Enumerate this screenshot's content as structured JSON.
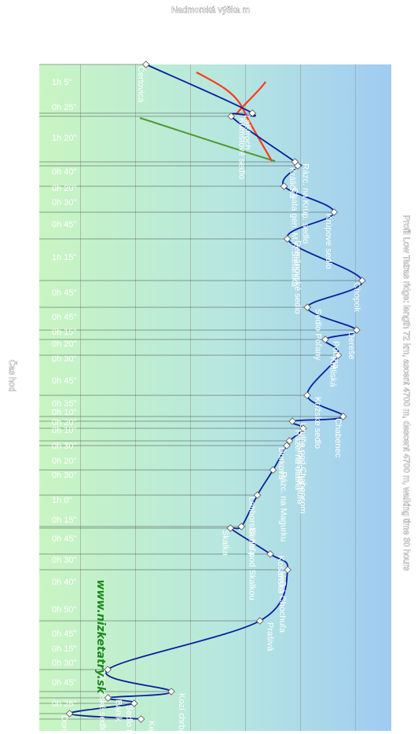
{
  "chart_data": {
    "type": "line",
    "title": "Profil Low Tatras ridge: length 72 km, ascent 4700 m, descent 4700 m, walking time 30 hours",
    "ylabel": "Nadmorská výška m",
    "xlabel": "Čas hod",
    "brand": "www.nizketatry.sk",
    "legend": "none",
    "colors": {
      "profile": "#0a1f9c",
      "green_route": "#4f9a2d",
      "red_route": "#ff3b1a",
      "sky": "#9fcbf2",
      "ground": "#c9f5c2"
    },
    "waypoints": [
      {
        "name": "Čertovica",
        "elevation": 1238
      },
      {
        "name": "Kumštové sedlo",
        "elevation": 1548
      },
      {
        "name": "Lajštroch",
        "elevation": 1625
      },
      {
        "name": "Rázc. na Krúp. sedlo",
        "elevation": 1780
      },
      {
        "name": "Králička",
        "elevation": 1790
      },
      {
        "name": "Chata gen. M.R.Štefánika",
        "elevation": 1740
      },
      {
        "name": "Krúpove sedlo",
        "elevation": 1922
      },
      {
        "name": "Demänovské sedlo",
        "elevation": 1752
      },
      {
        "name": "Chopok",
        "elevation": 2024
      },
      {
        "name": "Sedlo Poľany",
        "elevation": 1825
      },
      {
        "name": "Dereše",
        "elevation": 2004
      },
      {
        "name": "Poľana",
        "elevation": 1890
      },
      {
        "name": "Kotliská",
        "elevation": 1937
      },
      {
        "name": "Krížske sedlo",
        "elevation": 1824
      },
      {
        "name": "Chabenec",
        "elevation": 1955
      },
      {
        "name": "Útulňa pod Chabencom",
        "elevation": 1770
      },
      {
        "name": "Rázc. na útulňu",
        "elevation": 1810
      },
      {
        "name": "Zámostská hoľa",
        "elevation": 1760
      },
      {
        "name": "Ďurková",
        "elevation": 1750
      },
      {
        "name": "Rázc. na Magurku",
        "elevation": 1700
      },
      {
        "name": "Latiborská hoľa",
        "elevation": 1643
      },
      {
        "name": "Sedlo pod Skalkou",
        "elevation": 1585
      },
      {
        "name": "Skalka",
        "elevation": 1545
      },
      {
        "name": "Košarisko",
        "elevation": 1690
      },
      {
        "name": "Veľká Chochuľa",
        "elevation": 1753
      },
      {
        "name": "Prašivá",
        "elevation": 1652
      },
      {
        "name": "Hiadeľské sedlo",
        "elevation": 1099
      },
      {
        "name": "Kozí chrbát",
        "elevation": 1330
      },
      {
        "name": "Sedlo Hadliarka",
        "elevation": 1195
      },
      {
        "name": "Kečka",
        "elevation": 1220
      },
      {
        "name": "Donovaly",
        "elevation": 960
      },
      {
        "name": "Baník",
        "elevation": 1100
      }
    ],
    "segment_times": [
      "1h 5\"",
      "0h 25\"",
      "1h 20\"",
      "0h 40\"",
      "0h 20\"",
      "0h 30\"",
      "0h 45\"",
      "1h 15\"",
      "0h 45\"",
      "0h 45\"",
      "0h 15\"",
      "0h 20\"",
      "0h 30\"",
      "0h 45\"",
      "0h 35\"",
      "0h 10\"",
      "0h 20\"",
      "0h 10\"",
      "0h 30\"",
      "0h 20\"",
      "0h 30\"",
      "1h 0\"",
      "0h 15\"",
      "0h 45\"",
      "0h 30\"",
      "0h 40\"",
      "0h 50\"",
      "0h 45\"",
      "0h 15\"",
      "0h 30\"",
      "0h 45\"",
      "0h 25\""
    ]
  }
}
